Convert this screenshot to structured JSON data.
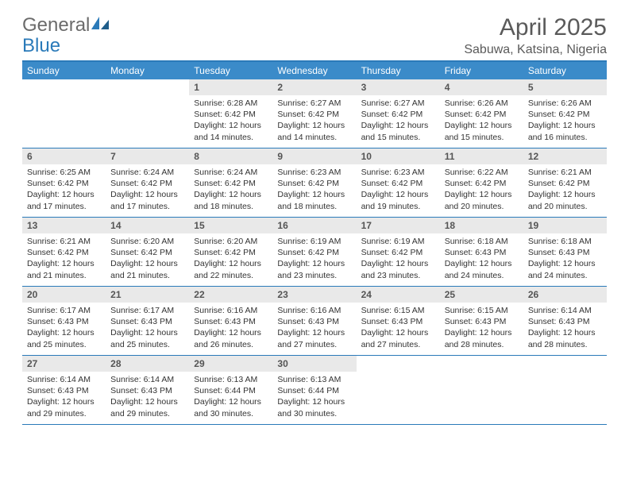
{
  "logo": {
    "text_a": "General",
    "text_b": "Blue"
  },
  "header": {
    "title": "April 2025",
    "subtitle": "Sabuwa, Katsina, Nigeria"
  },
  "style": {
    "accent": "#2a7ab9",
    "header_bg": "#3b8bc9",
    "daynum_bg": "#e9e9e9",
    "text": "#333333",
    "muted": "#5a5a5a"
  },
  "weekdays": [
    "Sunday",
    "Monday",
    "Tuesday",
    "Wednesday",
    "Thursday",
    "Friday",
    "Saturday"
  ],
  "weeks": [
    [
      null,
      null,
      {
        "n": "1",
        "sr": "6:28 AM",
        "ss": "6:42 PM",
        "dl": "12 hours and 14 minutes."
      },
      {
        "n": "2",
        "sr": "6:27 AM",
        "ss": "6:42 PM",
        "dl": "12 hours and 14 minutes."
      },
      {
        "n": "3",
        "sr": "6:27 AM",
        "ss": "6:42 PM",
        "dl": "12 hours and 15 minutes."
      },
      {
        "n": "4",
        "sr": "6:26 AM",
        "ss": "6:42 PM",
        "dl": "12 hours and 15 minutes."
      },
      {
        "n": "5",
        "sr": "6:26 AM",
        "ss": "6:42 PM",
        "dl": "12 hours and 16 minutes."
      }
    ],
    [
      {
        "n": "6",
        "sr": "6:25 AM",
        "ss": "6:42 PM",
        "dl": "12 hours and 17 minutes."
      },
      {
        "n": "7",
        "sr": "6:24 AM",
        "ss": "6:42 PM",
        "dl": "12 hours and 17 minutes."
      },
      {
        "n": "8",
        "sr": "6:24 AM",
        "ss": "6:42 PM",
        "dl": "12 hours and 18 minutes."
      },
      {
        "n": "9",
        "sr": "6:23 AM",
        "ss": "6:42 PM",
        "dl": "12 hours and 18 minutes."
      },
      {
        "n": "10",
        "sr": "6:23 AM",
        "ss": "6:42 PM",
        "dl": "12 hours and 19 minutes."
      },
      {
        "n": "11",
        "sr": "6:22 AM",
        "ss": "6:42 PM",
        "dl": "12 hours and 20 minutes."
      },
      {
        "n": "12",
        "sr": "6:21 AM",
        "ss": "6:42 PM",
        "dl": "12 hours and 20 minutes."
      }
    ],
    [
      {
        "n": "13",
        "sr": "6:21 AM",
        "ss": "6:42 PM",
        "dl": "12 hours and 21 minutes."
      },
      {
        "n": "14",
        "sr": "6:20 AM",
        "ss": "6:42 PM",
        "dl": "12 hours and 21 minutes."
      },
      {
        "n": "15",
        "sr": "6:20 AM",
        "ss": "6:42 PM",
        "dl": "12 hours and 22 minutes."
      },
      {
        "n": "16",
        "sr": "6:19 AM",
        "ss": "6:42 PM",
        "dl": "12 hours and 23 minutes."
      },
      {
        "n": "17",
        "sr": "6:19 AM",
        "ss": "6:42 PM",
        "dl": "12 hours and 23 minutes."
      },
      {
        "n": "18",
        "sr": "6:18 AM",
        "ss": "6:43 PM",
        "dl": "12 hours and 24 minutes."
      },
      {
        "n": "19",
        "sr": "6:18 AM",
        "ss": "6:43 PM",
        "dl": "12 hours and 24 minutes."
      }
    ],
    [
      {
        "n": "20",
        "sr": "6:17 AM",
        "ss": "6:43 PM",
        "dl": "12 hours and 25 minutes."
      },
      {
        "n": "21",
        "sr": "6:17 AM",
        "ss": "6:43 PM",
        "dl": "12 hours and 25 minutes."
      },
      {
        "n": "22",
        "sr": "6:16 AM",
        "ss": "6:43 PM",
        "dl": "12 hours and 26 minutes."
      },
      {
        "n": "23",
        "sr": "6:16 AM",
        "ss": "6:43 PM",
        "dl": "12 hours and 27 minutes."
      },
      {
        "n": "24",
        "sr": "6:15 AM",
        "ss": "6:43 PM",
        "dl": "12 hours and 27 minutes."
      },
      {
        "n": "25",
        "sr": "6:15 AM",
        "ss": "6:43 PM",
        "dl": "12 hours and 28 minutes."
      },
      {
        "n": "26",
        "sr": "6:14 AM",
        "ss": "6:43 PM",
        "dl": "12 hours and 28 minutes."
      }
    ],
    [
      {
        "n": "27",
        "sr": "6:14 AM",
        "ss": "6:43 PM",
        "dl": "12 hours and 29 minutes."
      },
      {
        "n": "28",
        "sr": "6:14 AM",
        "ss": "6:43 PM",
        "dl": "12 hours and 29 minutes."
      },
      {
        "n": "29",
        "sr": "6:13 AM",
        "ss": "6:44 PM",
        "dl": "12 hours and 30 minutes."
      },
      {
        "n": "30",
        "sr": "6:13 AM",
        "ss": "6:44 PM",
        "dl": "12 hours and 30 minutes."
      },
      null,
      null,
      null
    ]
  ],
  "labels": {
    "sunrise": "Sunrise:",
    "sunset": "Sunset:",
    "daylight": "Daylight:"
  }
}
